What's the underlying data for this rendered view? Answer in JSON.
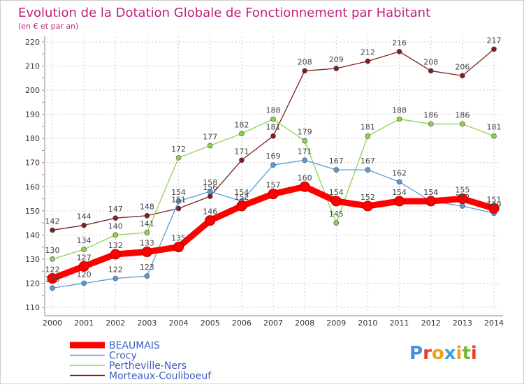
{
  "chart_data": {
    "type": "line",
    "title": "Evolution de la Dotation Globale de Fonctionnement par Habitant",
    "subtitle": "(en € et par an)",
    "x": [
      2000,
      2001,
      2002,
      2003,
      2004,
      2005,
      2006,
      2007,
      2008,
      2009,
      2010,
      2011,
      2012,
      2013,
      2014
    ],
    "ylim": [
      110,
      220
    ],
    "yticks": [
      110,
      120,
      130,
      140,
      150,
      160,
      170,
      180,
      190,
      200,
      210,
      220
    ],
    "grid": true,
    "legend_position": "bottom-left",
    "series": [
      {
        "name": "BEAUMAIS",
        "color": "#ff0000",
        "values": [
          122,
          127,
          132,
          133,
          135,
          146,
          152,
          157,
          160,
          154,
          152,
          154,
          154,
          155,
          151
        ],
        "labels": [
          "122",
          "127",
          "132",
          "133",
          "135",
          "146",
          "152",
          "157",
          "160",
          "154",
          "152",
          "154",
          "154",
          "155",
          "151"
        ]
      },
      {
        "name": "Crocy",
        "color": "#5b9bd5",
        "values": [
          118,
          120,
          122,
          123,
          154,
          158,
          154,
          169,
          171,
          167,
          167,
          162,
          154,
          152,
          149
        ],
        "labels": [
          "118",
          "120",
          "122",
          "123",
          "154",
          "158",
          "154",
          "169",
          "171",
          "167",
          "167",
          "162",
          "154",
          "152",
          "149"
        ]
      },
      {
        "name": "Pertheville-Ners",
        "color": "#92d050",
        "values": [
          130,
          134,
          140,
          141,
          172,
          177,
          182,
          188,
          179,
          145,
          181,
          188,
          186,
          186,
          181
        ],
        "labels": [
          "130",
          "134",
          "140",
          "141",
          "172",
          "177",
          "182",
          "188",
          "179",
          "145",
          "181",
          "188",
          "186",
          "186",
          "181"
        ]
      },
      {
        "name": "Morteaux-Couliboeuf",
        "color": "#7f1e1e",
        "values": [
          142,
          144,
          147,
          148,
          151,
          156,
          171,
          181,
          208,
          209,
          212,
          216,
          208,
          206,
          217
        ],
        "labels": [
          "142",
          "144",
          "147",
          "148",
          "151",
          "156",
          "171",
          "181",
          "208",
          "209",
          "212",
          "216",
          "208",
          "206",
          "217"
        ]
      }
    ]
  },
  "logo": {
    "text": "Proxiti"
  }
}
